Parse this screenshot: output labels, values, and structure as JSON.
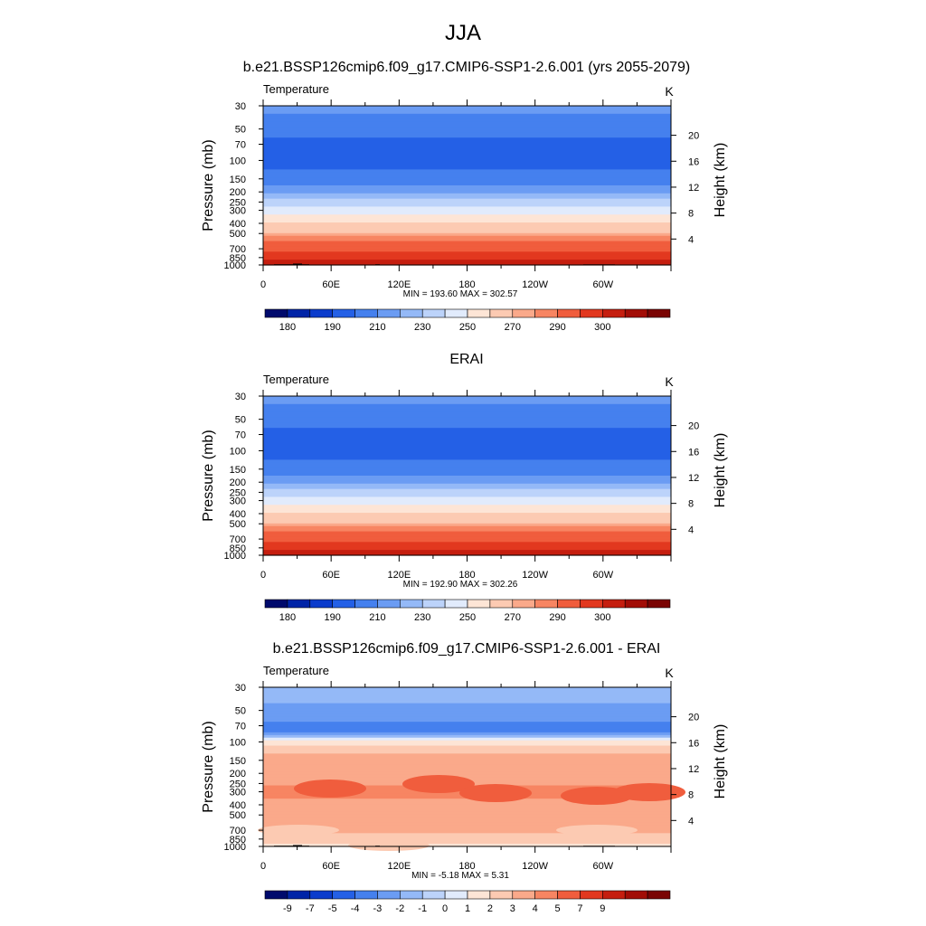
{
  "page_title": "JJA",
  "chart_data": [
    {
      "type": "heatmap",
      "title": "b.e21.BSSP126cmip6.f09_g17.CMIP6-SSP1-2.6.001 (yrs 2055-2079)",
      "variable_label": "Temperature",
      "units_label": "K",
      "ylabel": "Pressure (mb)",
      "ylabel_right": "Height (km)",
      "pressure_ticks": [
        "30",
        "50",
        "70",
        "100",
        "150",
        "200",
        "250",
        "300",
        "400",
        "500",
        "700",
        "850",
        "1000"
      ],
      "height_ticks": [
        "20",
        "16",
        "12",
        "8",
        "4"
      ],
      "lon_ticks": [
        "0",
        "60E",
        "120E",
        "180",
        "120W",
        "60W"
      ],
      "stats": "MIN = 193.60  MAX = 302.57",
      "colorbar_labels": [
        "180",
        "190",
        "210",
        "230",
        "250",
        "270",
        "290",
        "300"
      ],
      "colors": [
        "#000a6c",
        "#0024a7",
        "#0b3ccc",
        "#2460e6",
        "#4580ee",
        "#6b9cf3",
        "#94b9f7",
        "#bcd3fa",
        "#e1ebfc",
        "#fde5d6",
        "#fccab2",
        "#faa98a",
        "#f78562",
        "#f05d3d",
        "#e2381f",
        "#c51e0f",
        "#a20d06",
        "#7a0403"
      ],
      "min": 193.6,
      "max": 302.57
    },
    {
      "type": "heatmap",
      "title": "ERAI",
      "variable_label": "Temperature",
      "units_label": "K",
      "ylabel": "Pressure (mb)",
      "ylabel_right": "Height (km)",
      "pressure_ticks": [
        "30",
        "50",
        "70",
        "100",
        "150",
        "200",
        "250",
        "300",
        "400",
        "500",
        "700",
        "850",
        "1000"
      ],
      "height_ticks": [
        "20",
        "16",
        "12",
        "8",
        "4"
      ],
      "lon_ticks": [
        "0",
        "60E",
        "120E",
        "180",
        "120W",
        "60W"
      ],
      "stats": "MIN = 192.90  MAX = 302.26",
      "colorbar_labels": [
        "180",
        "190",
        "210",
        "230",
        "250",
        "270",
        "290",
        "300"
      ],
      "colors": [
        "#000a6c",
        "#0024a7",
        "#0b3ccc",
        "#2460e6",
        "#4580ee",
        "#6b9cf3",
        "#94b9f7",
        "#bcd3fa",
        "#e1ebfc",
        "#fde5d6",
        "#fccab2",
        "#faa98a",
        "#f78562",
        "#f05d3d",
        "#e2381f",
        "#c51e0f",
        "#a20d06",
        "#7a0403"
      ],
      "min": 192.9,
      "max": 302.26
    },
    {
      "type": "heatmap",
      "title": "b.e21.BSSP126cmip6.f09_g17.CMIP6-SSP1-2.6.001 - ERAI",
      "variable_label": "Temperature",
      "units_label": "K",
      "ylabel": "Pressure (mb)",
      "ylabel_right": "Height (km)",
      "pressure_ticks": [
        "30",
        "50",
        "70",
        "100",
        "150",
        "200",
        "250",
        "300",
        "400",
        "500",
        "700",
        "850",
        "1000"
      ],
      "height_ticks": [
        "20",
        "16",
        "12",
        "8",
        "4"
      ],
      "lon_ticks": [
        "0",
        "60E",
        "120E",
        "180",
        "120W",
        "60W"
      ],
      "stats": "MIN =  -5.18  MAX =   5.31",
      "colorbar_labels": [
        "-9",
        "-7",
        "-5",
        "-4",
        "-3",
        "-2",
        "-1",
        "0",
        "1",
        "2",
        "3",
        "4",
        "5",
        "7",
        "9"
      ],
      "colors": [
        "#000a6c",
        "#0024a7",
        "#0b3ccc",
        "#2460e6",
        "#4580ee",
        "#6b9cf3",
        "#94b9f7",
        "#bcd3fa",
        "#e1ebfc",
        "#fde5d6",
        "#fccab2",
        "#faa98a",
        "#f78562",
        "#f05d3d",
        "#e2381f",
        "#c51e0f",
        "#a20d06",
        "#7a0403"
      ],
      "min": -5.18,
      "max": 5.31
    }
  ]
}
